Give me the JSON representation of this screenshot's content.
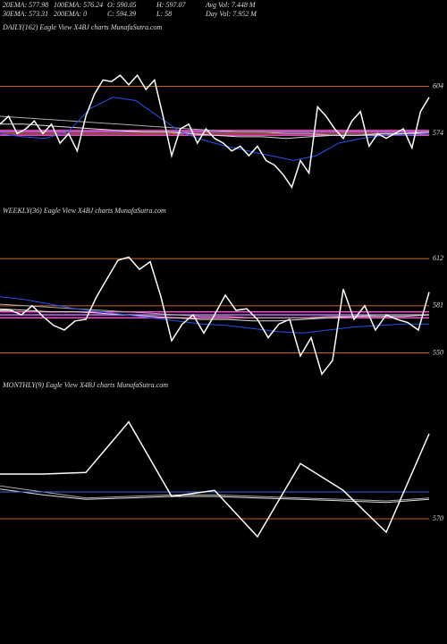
{
  "header": {
    "rows": [
      [
        "20EMA: 577.98",
        "100EMA: 576.24",
        "O: 590.05",
        "H: 597.07",
        "Avg Vol: 7.448 M"
      ],
      [
        "30EMA: 573.31",
        "200EMA: 0",
        "C: 594.39",
        "L: 58",
        "Day Vol: 7.952 M"
      ]
    ]
  },
  "chart_data": [
    {
      "type": "line",
      "title": "DAILY(162) Eagle View X4BJ charts MunafaSutra.com",
      "ylim": [
        534,
        636
      ],
      "yticks": [
        574,
        604
      ],
      "tick_color": "#c8641e",
      "hlines": [
        {
          "value": 576,
          "color": "#ff55cc"
        },
        {
          "value": 575,
          "color": "#cc66ff"
        },
        {
          "value": 573,
          "color": "#ff55cc"
        }
      ],
      "series": [
        {
          "color": "#aaaaaa",
          "values": [
            585,
            584,
            583,
            582,
            581,
            580,
            579,
            578,
            577,
            576,
            575,
            575,
            574,
            574,
            573,
            573,
            573,
            574,
            574
          ]
        },
        {
          "color": "#dddddd",
          "values": [
            580,
            580,
            579,
            578,
            577,
            576,
            575,
            575,
            574,
            573,
            572,
            572,
            571,
            572,
            573,
            573,
            574,
            574,
            575
          ]
        },
        {
          "color": "#2255ee",
          "values": [
            574,
            572,
            571,
            575,
            590,
            597,
            595,
            585,
            575,
            570,
            566,
            563,
            560,
            557,
            560,
            568,
            571,
            573,
            573,
            574
          ]
        },
        {
          "color": "#ffffff",
          "values": [
            580,
            585,
            574,
            577,
            582,
            574,
            580,
            568,
            574,
            563,
            585,
            599,
            608,
            607,
            611,
            605,
            611,
            602,
            608,
            585,
            560,
            577,
            580,
            568,
            577,
            571,
            568,
            563,
            566,
            560,
            566,
            557,
            554,
            548,
            540,
            557,
            549,
            591,
            585,
            577,
            571,
            582,
            588,
            566,
            574,
            571,
            574,
            577,
            565,
            588,
            597
          ]
        }
      ]
    },
    {
      "type": "line",
      "title": "WEEKLY(36) Eagle View X4BJ charts MunafaSutra.com",
      "ylim": [
        535,
        638
      ],
      "yticks": [
        550,
        581,
        612
      ],
      "tick_color": "#c8641e",
      "hlines": [
        {
          "value": 577,
          "color": "#ff55cc"
        },
        {
          "value": 575,
          "color": "#cc66ff"
        },
        {
          "value": 573,
          "color": "#ff55cc"
        }
      ],
      "series": [
        {
          "color": "#aaaaaa",
          "values": [
            582,
            581,
            580,
            579,
            578,
            577,
            576,
            575,
            574,
            574,
            573,
            573,
            573,
            574,
            574,
            575,
            575,
            575
          ]
        },
        {
          "color": "#dddddd",
          "values": [
            579,
            578,
            577,
            577,
            576,
            575,
            574,
            573,
            572,
            572,
            571,
            571,
            572,
            573,
            574,
            574,
            574,
            575
          ]
        },
        {
          "color": "#2255ee",
          "values": [
            587,
            585,
            582,
            579,
            577,
            575,
            573,
            571,
            569,
            568,
            566,
            564,
            563,
            565,
            567,
            568,
            569,
            569
          ]
        },
        {
          "color": "#ffffff",
          "values": [
            578,
            578,
            575,
            581,
            574,
            568,
            565,
            571,
            572,
            587,
            599,
            611,
            613,
            605,
            610,
            587,
            558,
            569,
            575,
            563,
            575,
            588,
            578,
            579,
            572,
            560,
            569,
            572,
            548,
            560,
            536,
            545,
            592,
            572,
            581,
            565,
            575,
            572,
            570,
            565,
            590
          ]
        }
      ]
    },
    {
      "type": "line",
      "title": "MONTHLY(9) Eagle View X4BJ charts MunafaSutra.com",
      "ylim": [
        498,
        654
      ],
      "yticks": [
        570
      ],
      "tick_color": "#c8641e",
      "hlines": [],
      "series": [
        {
          "color": "#aaaaaa",
          "values": [
            592,
            588,
            584,
            585,
            586,
            586,
            585,
            584,
            583,
            582,
            584
          ]
        },
        {
          "color": "#dddddd",
          "values": [
            590,
            586,
            583,
            584,
            585,
            585,
            584,
            583,
            582,
            581,
            583
          ]
        },
        {
          "color": "#3366ee",
          "values": [
            588,
            588,
            588,
            588,
            588,
            588,
            588,
            588,
            588,
            588,
            588
          ]
        },
        {
          "color": "#ffffff",
          "values": [
            600,
            600,
            601,
            635,
            585,
            589,
            558,
            607,
            589,
            561,
            627
          ]
        }
      ]
    }
  ]
}
